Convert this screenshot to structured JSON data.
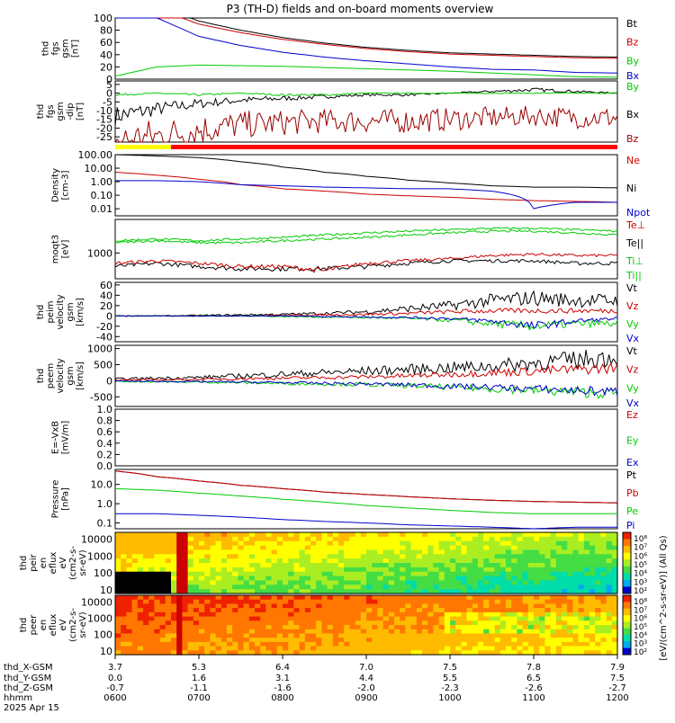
{
  "title": "P3 (TH-D) fields and on-board moments overview",
  "panels": [
    {
      "id": "fgs_gsm",
      "ylabel": [
        "thd",
        "fgs",
        "gsm",
        "[nT]"
      ],
      "yticks": [
        "100",
        "80",
        "60",
        "40",
        "20",
        "0"
      ],
      "ylim": [
        0,
        100
      ],
      "legend": [
        {
          "label": "Bt",
          "color": "#000000"
        },
        {
          "label": "Bz",
          "color": "#cc0000"
        },
        {
          "label": "By",
          "color": "#00cc00"
        },
        {
          "label": "Bx",
          "color": "#0000cc"
        }
      ]
    },
    {
      "id": "fgs_dsl",
      "ylabel": [
        "thd",
        "fgs",
        "gsm",
        "-dip",
        "[nT]"
      ],
      "yticks": [
        "5",
        "0",
        "-5",
        "-10",
        "-15",
        "-20",
        "-25"
      ],
      "ylim": [
        -28,
        7
      ],
      "legend": [
        {
          "label": "By",
          "color": "#00cc00"
        },
        {
          "label": "Bx",
          "color": "#000000"
        },
        {
          "label": "Bz",
          "color": "#990000"
        }
      ]
    },
    {
      "id": "density",
      "ylabel": [
        "Density",
        "[cm-3]"
      ],
      "yticks": [
        "100.00",
        "10.00",
        "1.00",
        "0.10",
        "0.01"
      ],
      "ylim": [
        0.003,
        100
      ],
      "log": true,
      "legend": [
        {
          "label": "Ne",
          "color": "#cc0000"
        },
        {
          "label": "Ni",
          "color": "#000000"
        },
        {
          "label": "Npot",
          "color": "#0000cc"
        }
      ]
    },
    {
      "id": "temp",
      "ylabel": [
        "moqt3",
        "[eV]"
      ],
      "yticks": [
        "1000"
      ],
      "ylim": [
        100,
        20000
      ],
      "log": true,
      "legend": [
        {
          "label": "Te⊥",
          "color": "#cc0000"
        },
        {
          "label": "Te||",
          "color": "#000000"
        },
        {
          "label": "Ti⊥",
          "color": "#00cc00"
        },
        {
          "label": "Ti||",
          "color": "#00cc00"
        }
      ]
    },
    {
      "id": "vi",
      "ylabel": [
        "thd",
        "peim",
        "velocity",
        "gsm",
        "[km/s]"
      ],
      "yticks": [
        "60",
        "40",
        "20",
        "0",
        "-20",
        "-40"
      ],
      "ylim": [
        -50,
        65
      ],
      "legend": [
        {
          "label": "Vt",
          "color": "#000000"
        },
        {
          "label": "Vz",
          "color": "#cc0000"
        },
        {
          "label": "Vy",
          "color": "#00cc00"
        },
        {
          "label": "Vx",
          "color": "#0000cc"
        }
      ]
    },
    {
      "id": "ve",
      "ylabel": [
        "thd",
        "peem",
        "velocity",
        "gsm",
        "[km/s]"
      ],
      "yticks": [
        "1000",
        "500",
        "0",
        "-500"
      ],
      "ylim": [
        -800,
        1100
      ],
      "legend": [
        {
          "label": "Vt",
          "color": "#000000"
        },
        {
          "label": "Vz",
          "color": "#cc0000"
        },
        {
          "label": "Vy",
          "color": "#00cc00"
        },
        {
          "label": "Vx",
          "color": "#0000cc"
        }
      ]
    },
    {
      "id": "efield",
      "ylabel": [
        "E=-VxB",
        "[mV/m]"
      ],
      "yticks": [
        "1.0",
        "0.8",
        "0.6",
        "0.4",
        "0.2",
        "0.0"
      ],
      "ylim": [
        0,
        1
      ],
      "legend": [
        {
          "label": "Ez",
          "color": "#cc0000"
        },
        {
          "label": "Ey",
          "color": "#00cc00"
        },
        {
          "label": "Ex",
          "color": "#0000cc"
        }
      ]
    },
    {
      "id": "pressure",
      "ylabel": [
        "Pressure",
        "[nPa]"
      ],
      "yticks": [
        "10.0",
        "1.0",
        "0.1"
      ],
      "ylim": [
        0.05,
        60
      ],
      "log": true,
      "legend": [
        {
          "label": "Pt",
          "color": "#000000"
        },
        {
          "label": "Pb",
          "color": "#cc0000"
        },
        {
          "label": "Pe",
          "color": "#00cc00"
        },
        {
          "label": "Pi",
          "color": "#0000cc"
        }
      ]
    },
    {
      "id": "ion_spec",
      "ylabel": [
        "thd",
        "peir",
        "en",
        "eflux",
        "eV",
        "(cm2-s-",
        "sr-eV)"
      ],
      "yticks": [
        "10000",
        "1000",
        "100",
        "10"
      ],
      "ylim": [
        6,
        25000
      ],
      "log": true,
      "spec": true
    },
    {
      "id": "ele_spec",
      "ylabel": [
        "thd",
        "peer",
        "en",
        "eflux",
        "eV",
        "(cm2-s-",
        "sr-eV)"
      ],
      "yticks": [
        "10000",
        "1000",
        "100",
        "10"
      ],
      "ylim": [
        6,
        25000
      ],
      "log": true,
      "spec": true
    }
  ],
  "colorbar": {
    "ticks": [
      "10⁸",
      "10⁷",
      "10⁶",
      "10⁵",
      "10⁴",
      "10³",
      "10²"
    ],
    "label": "[eV/(cm^2-s-sr-eV)] (All Qs)"
  },
  "status_bar": {
    "colors": [
      "#ffff00",
      "#ff0000"
    ]
  },
  "time_axis": {
    "row_labels": [
      "thd_X-GSM",
      "thd_Y-GSM",
      "thd_Z-GSM",
      "hhmm",
      "2025 Apr 15"
    ],
    "x_gsm": [
      "3.7",
      "5.3",
      "6.4",
      "7.0",
      "7.5",
      "7.8",
      "7.9"
    ],
    "y_gsm": [
      "0.0",
      "1.6",
      "3.1",
      "4.4",
      "5.5",
      "6.5",
      "7.5"
    ],
    "z_gsm": [
      "-0.7",
      "-1.1",
      "-1.6",
      "-2.0",
      "-2.3",
      "-2.6",
      "-2.7"
    ],
    "hhmm": [
      "0600",
      "0700",
      "0800",
      "0900",
      "1000",
      "1100",
      "1200"
    ]
  },
  "chart_data": {
    "type": "line",
    "title": "P3 (TH-D) fields and on-board moments overview",
    "x": [
      "0600",
      "0630",
      "0700",
      "0730",
      "0800",
      "0830",
      "0900",
      "0930",
      "1000",
      "1030",
      "1100",
      "1130",
      "1200"
    ],
    "series": [
      {
        "panel": "fgs_gsm",
        "name": "Bt",
        "values": [
          150,
          120,
          95,
          80,
          68,
          59,
          52,
          47,
          43,
          41,
          39,
          37,
          36
        ]
      },
      {
        "panel": "fgs_gsm",
        "name": "Bz",
        "values": [
          140,
          115,
          90,
          76,
          65,
          57,
          50,
          45,
          41,
          39,
          37,
          35,
          34
        ]
      },
      {
        "panel": "fgs_gsm",
        "name": "By",
        "values": [
          5,
          20,
          23,
          22,
          21,
          19,
          17,
          15,
          13,
          10,
          7,
          4,
          3
        ]
      },
      {
        "panel": "fgs_gsm",
        "name": "Bx",
        "values": [
          160,
          100,
          70,
          55,
          44,
          36,
          30,
          25,
          20,
          16,
          15,
          11,
          10
        ]
      },
      {
        "panel": "fgs_dsl",
        "name": "Bx",
        "values": [
          -13,
          -9,
          -6,
          -4,
          -3,
          -2,
          -1,
          -1,
          0,
          1,
          2,
          1,
          0
        ]
      },
      {
        "panel": "fgs_dsl",
        "name": "By",
        "values": [
          -1,
          0,
          -1,
          0,
          -1,
          -1,
          0,
          0,
          0,
          0,
          0,
          0,
          0
        ]
      },
      {
        "panel": "fgs_dsl",
        "name": "Bz",
        "values": [
          -28,
          -25,
          -21,
          -18,
          -17,
          -16,
          -16,
          -16,
          -15,
          -14,
          -13,
          -14,
          -14
        ]
      },
      {
        "panel": "density",
        "name": "Ne",
        "values": [
          5,
          3,
          1.5,
          0.6,
          0.3,
          0.2,
          0.12,
          0.09,
          0.07,
          0.05,
          0.04,
          0.035,
          0.03
        ]
      },
      {
        "panel": "density",
        "name": "Ni",
        "values": [
          100,
          80,
          60,
          30,
          12,
          5,
          2.5,
          1.3,
          0.8,
          0.5,
          0.4,
          0.4,
          0.35
        ]
      },
      {
        "panel": "density",
        "name": "Npot",
        "values": [
          1.2,
          1.2,
          1,
          0.6,
          0.5,
          0.4,
          0.35,
          0.3,
          0.3,
          0.2,
          0.01,
          0.03,
          0.03
        ]
      },
      {
        "panel": "temp",
        "name": "Te||",
        "values": [
          300,
          400,
          300,
          250,
          250,
          250,
          300,
          400,
          500,
          500,
          500,
          400,
          400
        ]
      },
      {
        "panel": "temp",
        "name": "Te⊥",
        "values": [
          400,
          500,
          400,
          300,
          300,
          200,
          400,
          500,
          600,
          800,
          900,
          800,
          800
        ]
      },
      {
        "panel": "temp",
        "name": "Ti⊥",
        "values": [
          2500,
          3000,
          2500,
          2500,
          3000,
          3500,
          4000,
          5000,
          6000,
          7000,
          7000,
          6000,
          5000
        ]
      },
      {
        "panel": "temp",
        "name": "Ti||",
        "values": [
          3000,
          3500,
          3000,
          3500,
          4000,
          5000,
          6000,
          7000,
          8000,
          9000,
          9000,
          8000,
          7000
        ]
      },
      {
        "panel": "vi",
        "name": "Vt",
        "values": [
          0,
          0,
          1,
          2,
          3,
          5,
          8,
          14,
          20,
          30,
          35,
          30,
          30
        ]
      },
      {
        "panel": "vi",
        "name": "Vz",
        "values": [
          0,
          0,
          0,
          0,
          1,
          2,
          3,
          5,
          8,
          10,
          10,
          10,
          10
        ]
      },
      {
        "panel": "vi",
        "name": "Vy",
        "values": [
          0,
          0,
          0,
          0,
          -1,
          -2,
          -3,
          -5,
          -8,
          -15,
          -20,
          -15,
          -15
        ]
      },
      {
        "panel": "vi",
        "name": "Vx",
        "values": [
          0,
          0,
          0,
          0,
          0,
          -1,
          -2,
          -3,
          -5,
          -10,
          -20,
          -10,
          -5
        ]
      },
      {
        "panel": "ve",
        "name": "Vt",
        "values": [
          50,
          80,
          100,
          150,
          200,
          250,
          300,
          350,
          400,
          450,
          550,
          650,
          750
        ]
      },
      {
        "panel": "ve",
        "name": "Vz",
        "values": [
          20,
          30,
          40,
          60,
          80,
          100,
          120,
          150,
          200,
          250,
          300,
          350,
          400
        ]
      },
      {
        "panel": "ve",
        "name": "Vy",
        "values": [
          -20,
          -30,
          -40,
          -60,
          -80,
          -100,
          -120,
          -150,
          -200,
          -250,
          -300,
          -350,
          -400
        ]
      },
      {
        "panel": "ve",
        "name": "Vx",
        "values": [
          -10,
          -20,
          -30,
          -40,
          -60,
          -80,
          -100,
          -130,
          -170,
          -200,
          -250,
          -300,
          -350
        ]
      },
      {
        "panel": "pressure",
        "name": "Pt",
        "values": [
          50,
          25,
          15,
          9,
          6,
          4,
          3,
          2.3,
          1.8,
          1.5,
          1.3,
          1.2,
          1.1
        ]
      },
      {
        "panel": "pressure",
        "name": "Pb",
        "values": [
          50,
          25,
          15,
          9,
          6,
          4,
          3,
          2.3,
          1.8,
          1.5,
          1.3,
          1.2,
          1.1
        ]
      },
      {
        "panel": "pressure",
        "name": "Pe",
        "values": [
          6,
          5,
          3.5,
          2.5,
          1.7,
          1.2,
          0.8,
          0.6,
          0.45,
          0.35,
          0.3,
          0.3,
          0.3
        ]
      },
      {
        "panel": "pressure",
        "name": "Pi",
        "values": [
          0.3,
          0.3,
          0.25,
          0.2,
          0.15,
          0.12,
          0.1,
          0.08,
          0.07,
          0.06,
          0.05,
          0.06,
          0.06
        ]
      }
    ]
  }
}
